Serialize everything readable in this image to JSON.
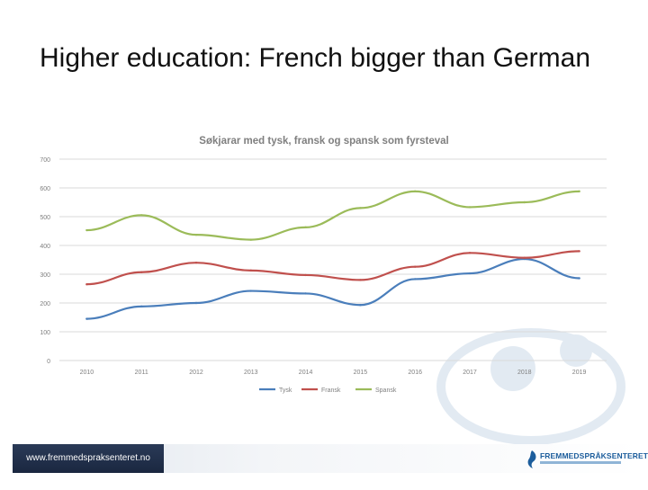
{
  "slide": {
    "title": "Higher education: French bigger than German"
  },
  "footer": {
    "url": "www.fremmedspraksenteret.no",
    "brand": "FREMMEDSPRÅKSENTERET"
  },
  "colors": {
    "tysk": "#4a7ebb",
    "fransk": "#c0504d",
    "spansk": "#9bbb59",
    "grid": "#d9d9d9",
    "footer_dark": "#1f2d48",
    "brand": "#1c5d9c"
  },
  "chart_data": {
    "type": "line",
    "title": "Søkjarar med tysk, fransk og spansk som fyrsteval",
    "xlabel": "",
    "ylabel": "",
    "categories": [
      "2010",
      "2011",
      "2012",
      "2013",
      "2014",
      "2015",
      "2016",
      "2017",
      "2018",
      "2019"
    ],
    "ylim": [
      0,
      700
    ],
    "yticks": [
      "0",
      "100",
      "200",
      "300",
      "400",
      "500",
      "600",
      "700"
    ],
    "grid": true,
    "legend_position": "bottom",
    "series": [
      {
        "name": "Tysk",
        "color": "#4a7ebb",
        "values": [
          145,
          188,
          200,
          242,
          233,
          193,
          283,
          303,
          353,
          286
        ]
      },
      {
        "name": "Fransk",
        "color": "#c0504d",
        "values": [
          265,
          307,
          340,
          313,
          297,
          280,
          326,
          374,
          357,
          380
        ]
      },
      {
        "name": "Spansk",
        "color": "#9bbb59",
        "values": [
          453,
          505,
          437,
          420,
          463,
          530,
          588,
          533,
          550,
          588
        ]
      }
    ]
  }
}
